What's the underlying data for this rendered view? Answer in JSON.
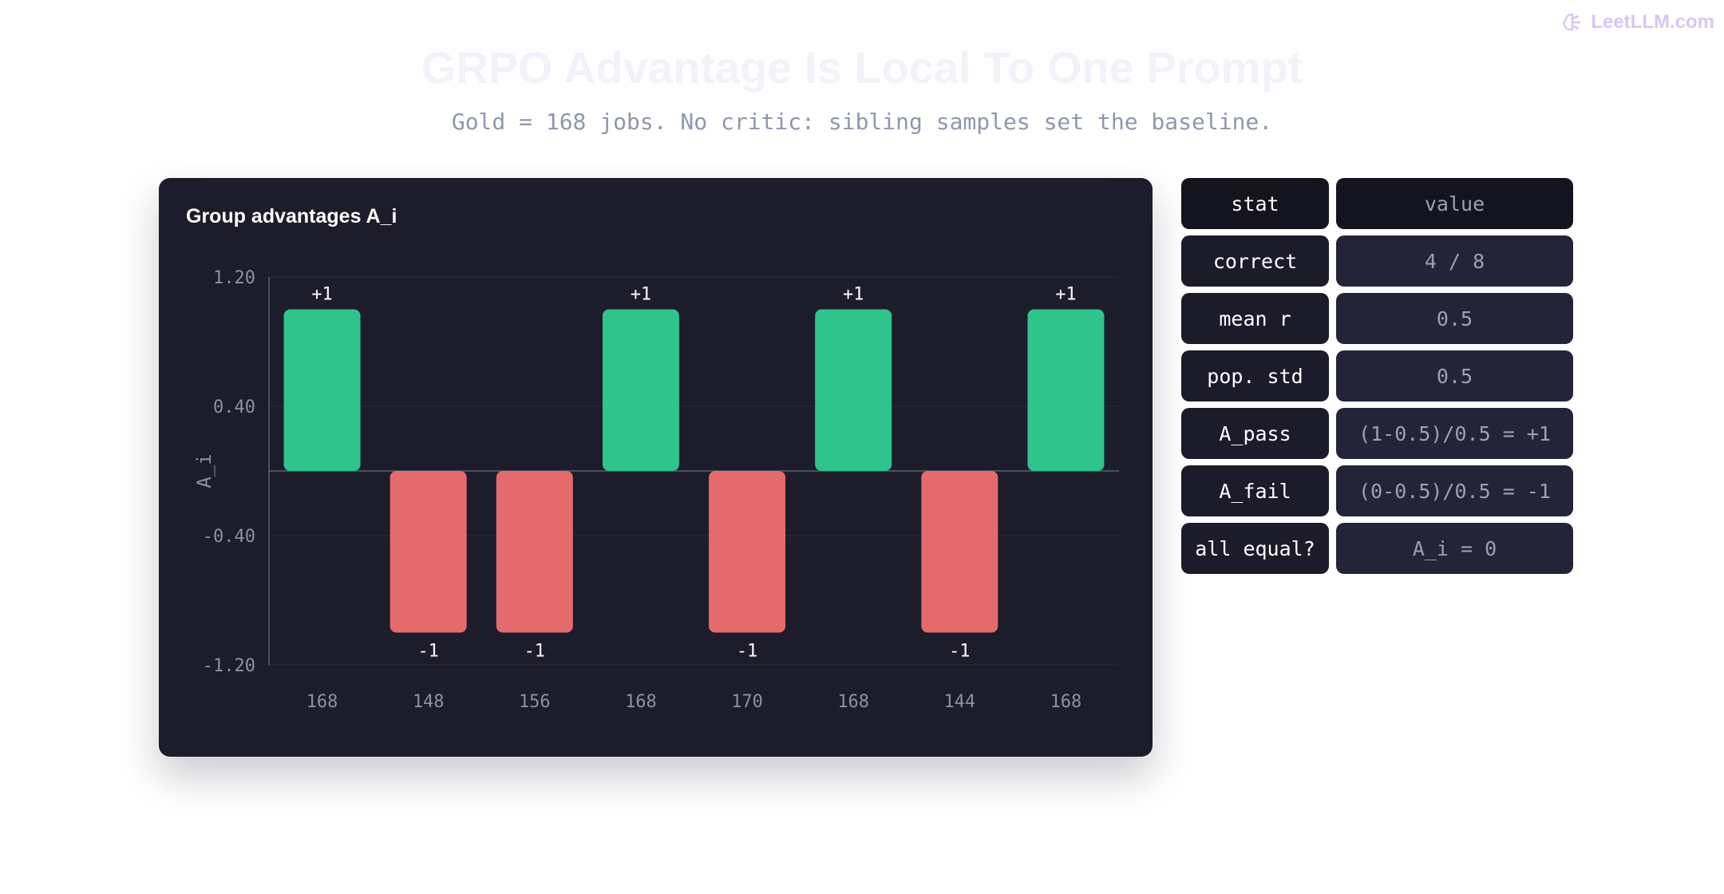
{
  "brand": {
    "name": "LeetLLM.com",
    "icon": "brain-logo-icon",
    "color": "#d6c6f2"
  },
  "header": {
    "title": "GRPO Advantage Is Local To One Prompt",
    "subtitle": "Gold = 168 jobs. No critic: sibling samples set the baseline."
  },
  "panel": {
    "title": "Group advantages A_i"
  },
  "chart_data": {
    "type": "bar",
    "title": "Group advantages A_i",
    "xlabel": "",
    "ylabel": "A_i",
    "ylim": [
      -1.2,
      1.2
    ],
    "yticks": [
      "1.20",
      "0.40",
      "-0.40",
      "-1.20"
    ],
    "yticks_values": [
      1.2,
      0.4,
      -0.4,
      -1.2
    ],
    "grid": true,
    "categories": [
      "168",
      "148",
      "156",
      "168",
      "170",
      "168",
      "144",
      "168"
    ],
    "values": [
      1,
      -1,
      -1,
      1,
      -1,
      1,
      -1,
      1
    ],
    "data_labels": [
      "+1",
      "-1",
      "-1",
      "+1",
      "-1",
      "+1",
      "-1",
      "+1"
    ],
    "colors": {
      "positive": "#2ec48c",
      "negative": "#e56a6c"
    }
  },
  "stats_table": {
    "headers": [
      "stat",
      "value"
    ],
    "rows": [
      [
        "correct",
        "4 / 8"
      ],
      [
        "mean r",
        "0.5"
      ],
      [
        "pop. std",
        "0.5"
      ],
      [
        "A_pass",
        "(1-0.5)/0.5 = +1"
      ],
      [
        "A_fail",
        "(0-0.5)/0.5 = -1"
      ],
      [
        "all equal?",
        "A_i = 0"
      ]
    ]
  },
  "colors": {
    "panel_bg": "#1c1c2b",
    "grid": "#2a2a3c",
    "axis": "#4a4f60",
    "tick_text": "#8b92a3"
  }
}
